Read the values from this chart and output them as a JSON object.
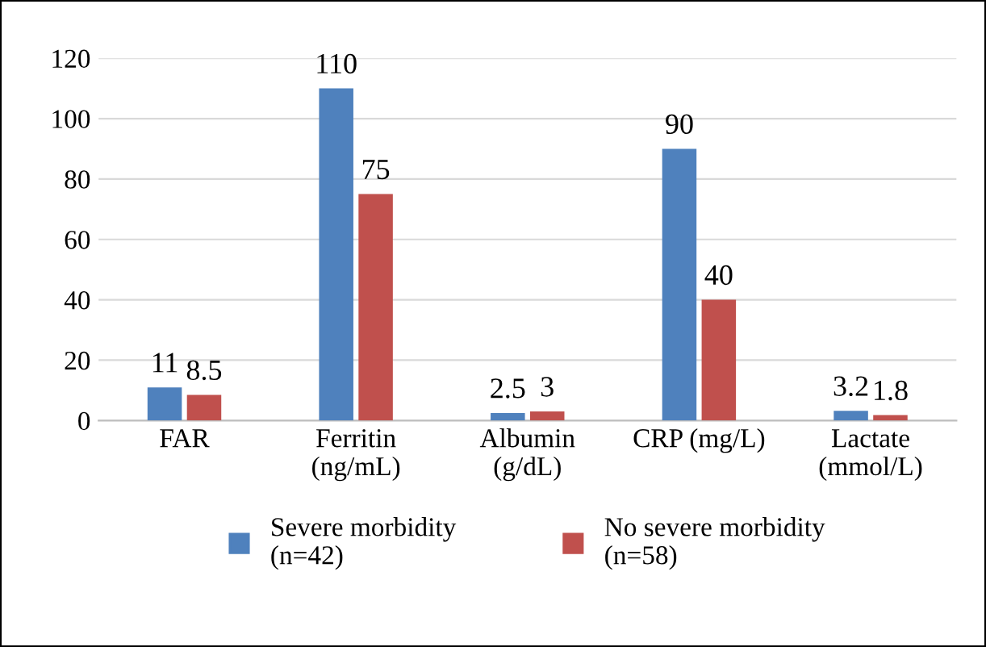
{
  "chart_data": {
    "type": "bar",
    "categories": [
      "FAR",
      "Ferritin\n(ng/mL)",
      "Albumin\n(g/dL)",
      "CRP (mg/L)",
      "Lactate\n(mmol/L)"
    ],
    "series": [
      {
        "name": "Severe morbidity\n(n=42)",
        "color": "#4f81bd",
        "values": [
          11,
          110,
          2.5,
          90,
          3.2
        ]
      },
      {
        "name": "No severe morbidity\n(n=58)",
        "color": "#c0504d",
        "values": [
          8.5,
          75,
          3,
          40,
          1.8
        ]
      }
    ],
    "ylim": [
      0,
      120
    ],
    "yticks": [
      0,
      20,
      40,
      60,
      80,
      100,
      120
    ],
    "grid": "y",
    "legend": "bottom",
    "data_labels": true
  }
}
